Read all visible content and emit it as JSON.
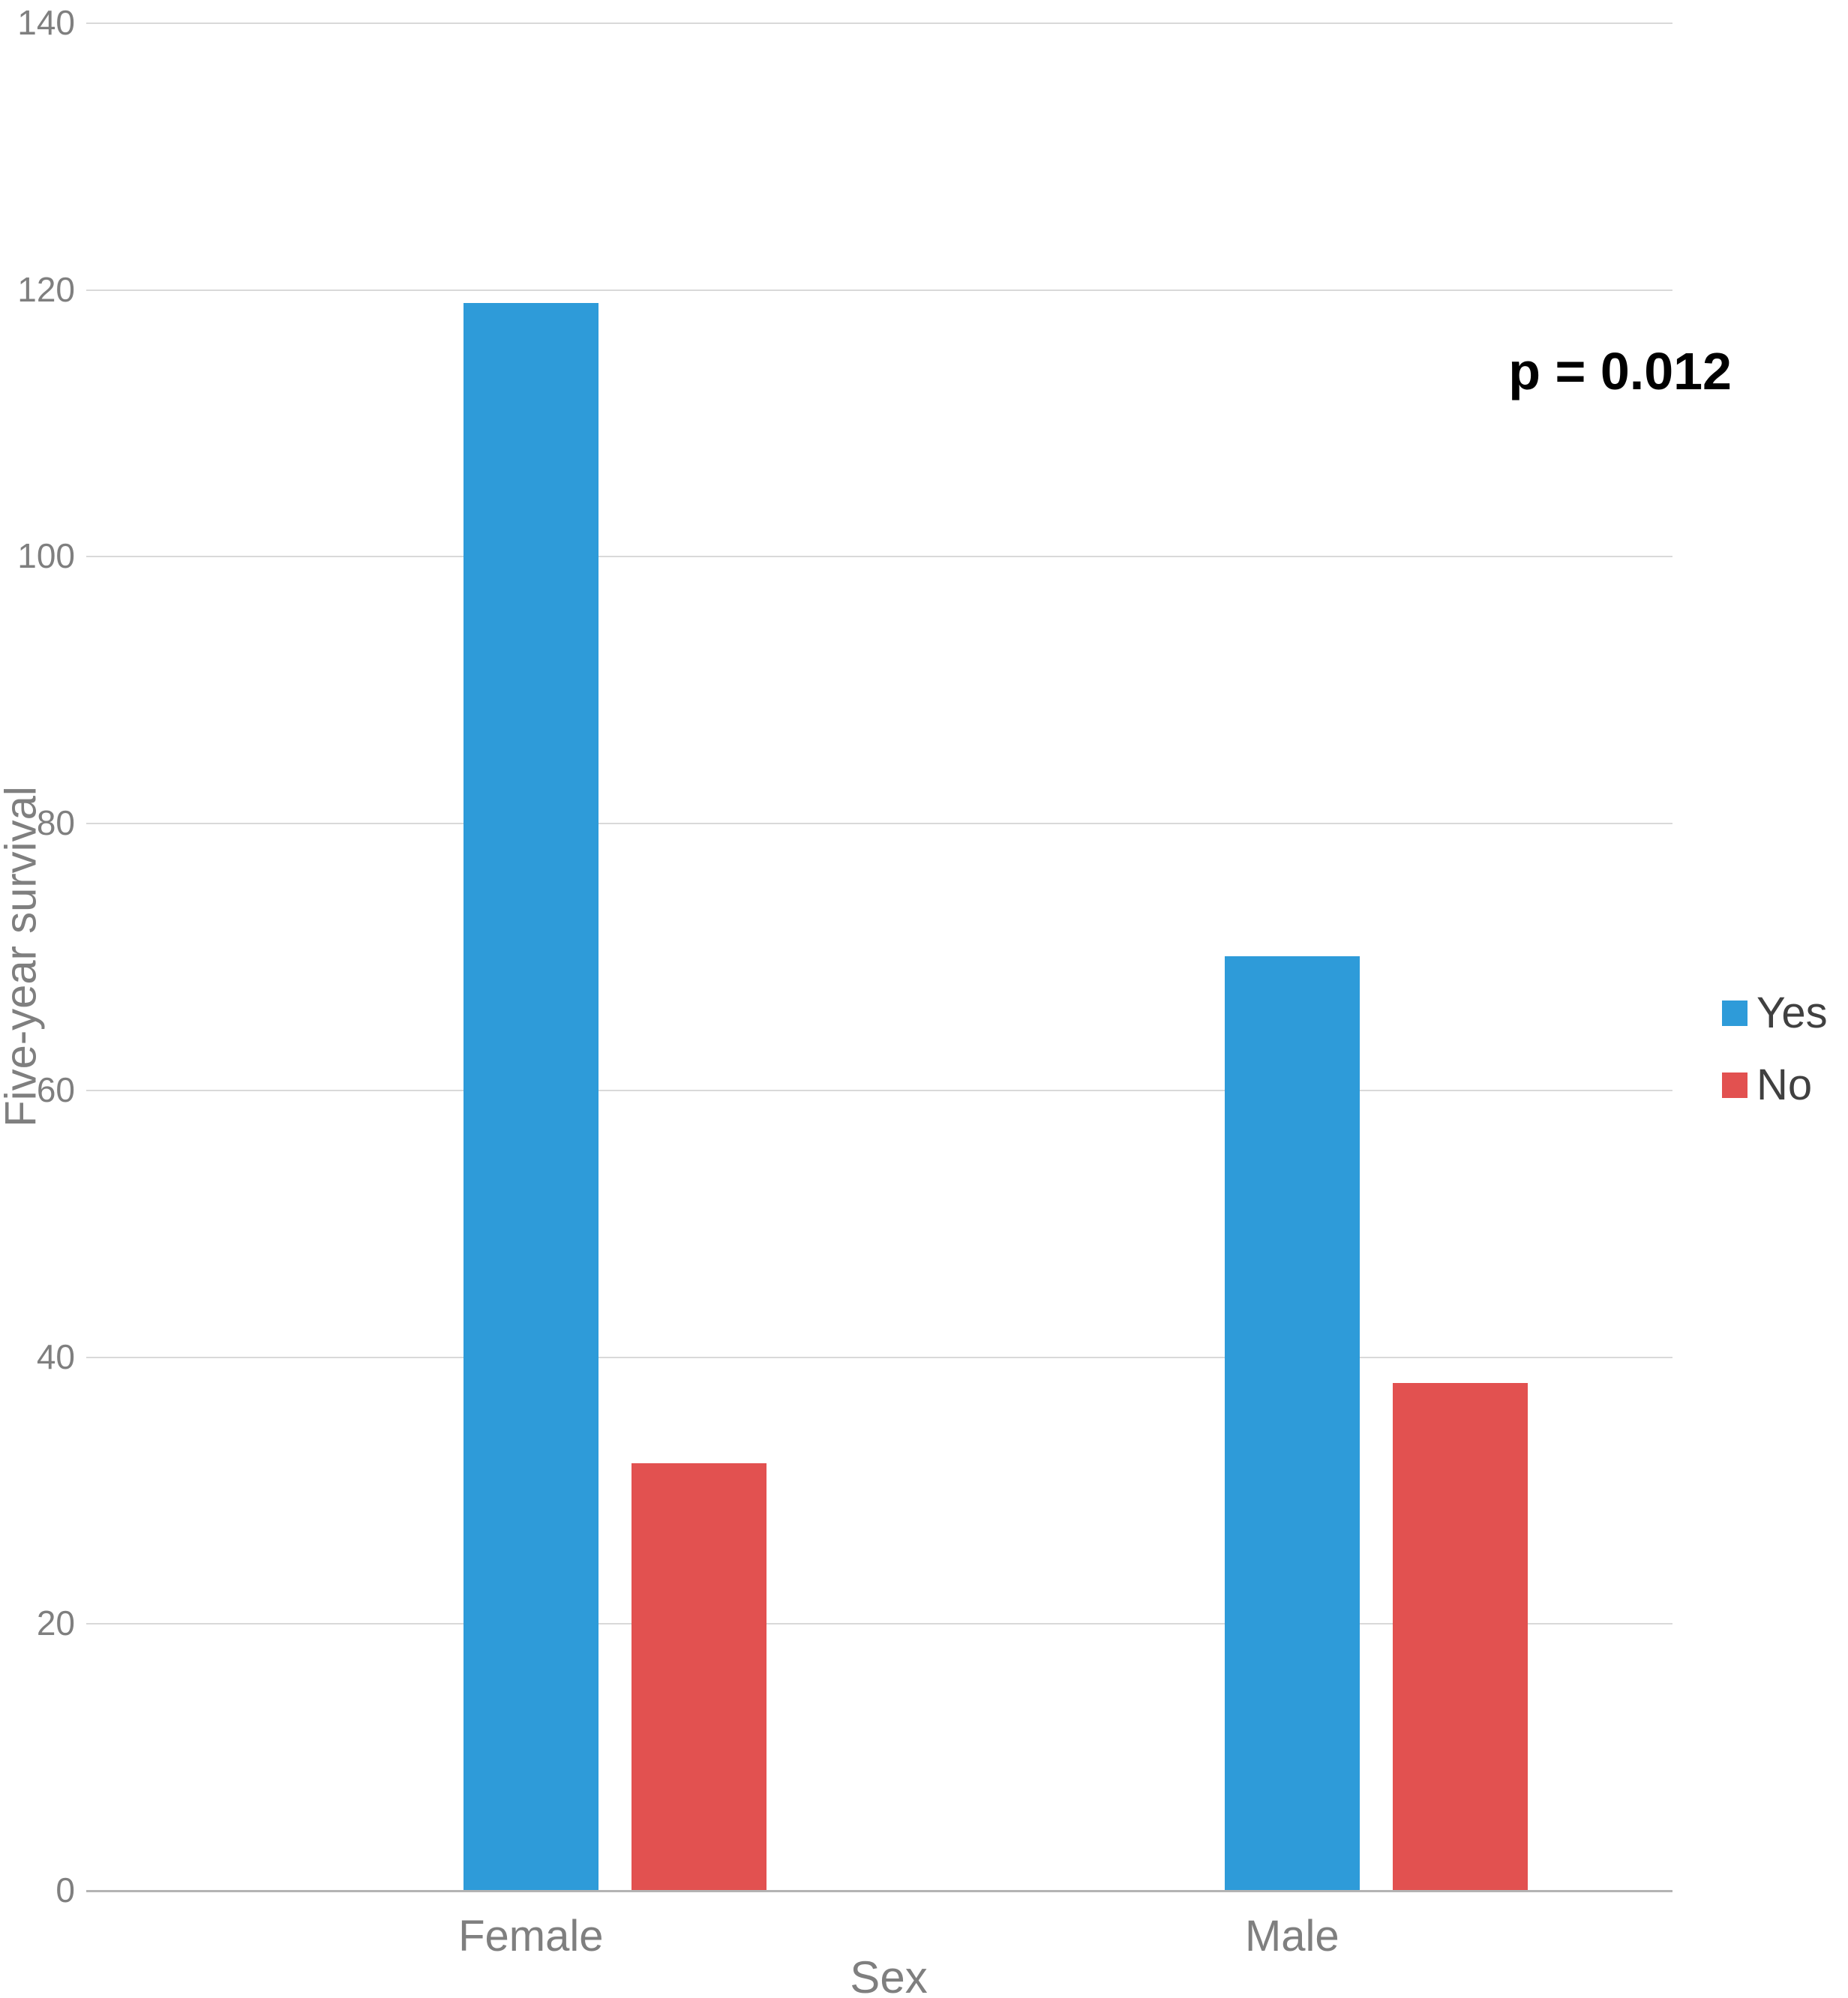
{
  "chart_data": {
    "type": "bar",
    "title": "",
    "xlabel": "Sex",
    "ylabel": "Five-year survival",
    "categories": [
      "Female",
      "Male"
    ],
    "series": [
      {
        "name": "Yes",
        "color": "#2E9BD9",
        "values": [
          119,
          70
        ]
      },
      {
        "name": "No",
        "color": "#E25150",
        "values": [
          32,
          38
        ]
      }
    ],
    "ylim": [
      0,
      140
    ],
    "ytick_step": 20,
    "yticks": [
      0,
      20,
      40,
      60,
      80,
      100,
      120,
      140
    ],
    "grid": true,
    "legend_position": "right",
    "annotation": "p = 0.012",
    "colors": {
      "gridline": "#d9d9d9",
      "baseline": "#b3b3b3",
      "axis_text": "#7f7f7f",
      "annotation_text": "#000000"
    }
  }
}
